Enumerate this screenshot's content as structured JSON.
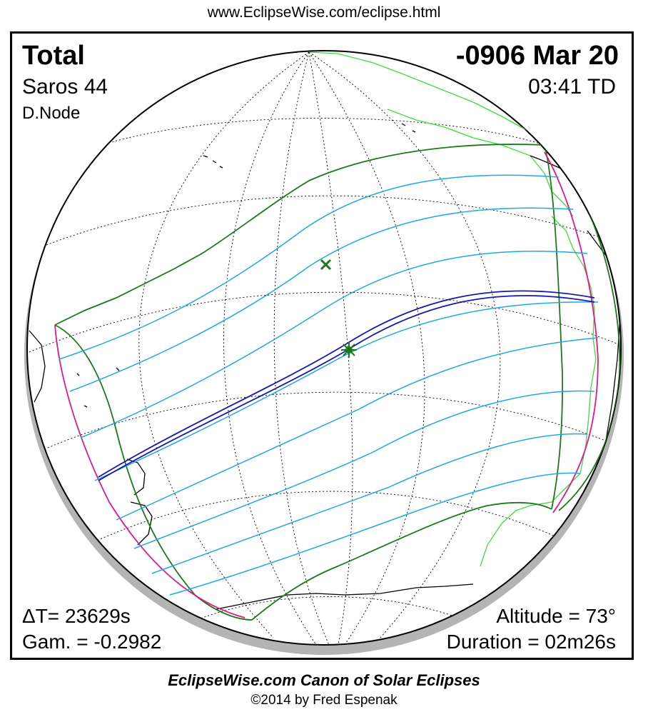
{
  "header": {
    "url": "www.EclipseWise.com/eclipse.html"
  },
  "eclipse": {
    "type": "Total",
    "date": "-0906 Mar 20",
    "saros": "Saros  44",
    "time": "03:41 TD",
    "node": "D.Node",
    "delta_t": "ΔT=  23629s",
    "gamma": "Gam. = -0.2982",
    "altitude": "Altitude = 73°",
    "duration": "Duration = 02m26s"
  },
  "colors": {
    "totality_path": "#1a1aa8",
    "penumbra_limit": "#1a7a1a",
    "magnitude_curves": "#22a8e0",
    "rise_set_curve": "#e0188c",
    "coastline_land": "#3ddc3d",
    "coastline_other": "#000000",
    "graticule": "#000000",
    "globe_shadow": "#b4b4b4"
  },
  "markers": {
    "greatest_eclipse_icon": "star-asterisk-icon",
    "subsolar_point_icon": "cross-x-icon"
  },
  "footer": {
    "title": "EclipseWise.com Canon of Solar Eclipses",
    "copyright": "©2014 by Fred Espenak"
  }
}
